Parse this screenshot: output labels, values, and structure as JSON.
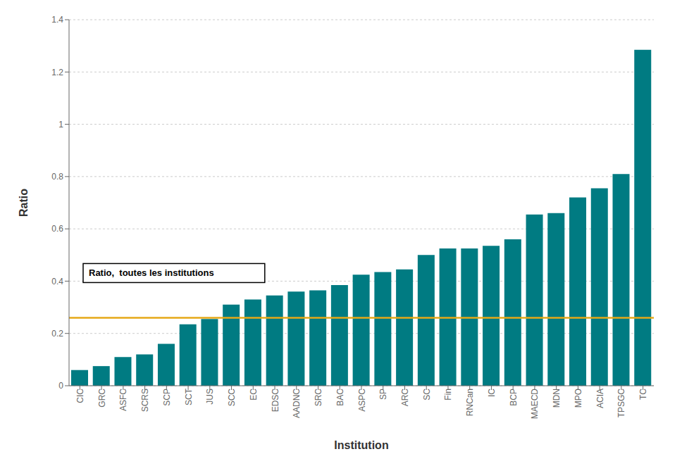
{
  "chart_data": {
    "type": "bar",
    "categories": [
      "CIC",
      "GRC",
      "ASFC",
      "SCRS",
      "SCP",
      "SCT",
      "JUS",
      "SCC",
      "EC",
      "EDSC",
      "AADNC",
      "SRC",
      "BAC",
      "ASPC",
      "SP",
      "ARC",
      "SC",
      "Fin",
      "RNCan",
      "IC",
      "BCP",
      "MAECD",
      "MDN",
      "MPO",
      "ACIA",
      "TPSGC",
      "TC"
    ],
    "values": [
      0.06,
      0.075,
      0.11,
      0.12,
      0.16,
      0.235,
      0.255,
      0.31,
      0.33,
      0.345,
      0.36,
      0.365,
      0.385,
      0.425,
      0.435,
      0.445,
      0.5,
      0.525,
      0.525,
      0.535,
      0.56,
      0.655,
      0.66,
      0.72,
      0.755,
      0.81,
      1.285
    ],
    "color": "#007b82",
    "xlabel": "Institution",
    "ylabel": "Ratio",
    "ylim": [
      0,
      1.4
    ],
    "yticks": [
      0,
      0.2,
      0.4,
      0.6,
      0.8,
      1.0,
      1.2,
      1.4
    ],
    "grid": true,
    "reference_line": {
      "value": 0.26,
      "label": "Ratio,  toutes les institutions",
      "color": "#e6a817"
    }
  }
}
